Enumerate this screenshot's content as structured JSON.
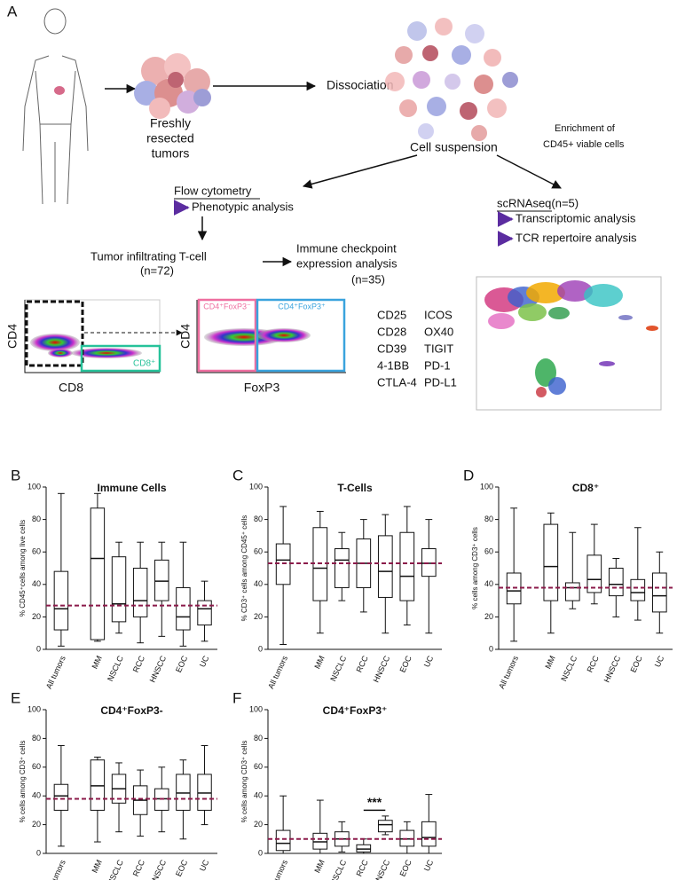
{
  "diagram": {
    "panel_label": "A",
    "tumor_label": [
      "Freshly",
      "resected",
      "tumors"
    ],
    "dissociation": "Dissociation",
    "cell_suspension": "Cell suspension",
    "enrichment": [
      "Enrichment of",
      "CD45+ viable cells"
    ],
    "flow_cytometry": "Flow cytometry",
    "phenotypic": "Phenotypic analysis",
    "scrnaseq": "scRNAseq(n=5)",
    "transcriptomic": "Transcriptomic analysis",
    "tcr": "TCR repertoire analysis",
    "til": [
      "Tumor infiltrating T-cell",
      "(n=72)"
    ],
    "checkpoint": [
      "Immune checkpoint",
      "expression analysis",
      "(n=35)"
    ],
    "plot1": {
      "y_label": "CD4",
      "x_label": "CD8",
      "gate": "CD8⁺"
    },
    "plot2": {
      "y_label": "CD4",
      "x_label": "FoxP3",
      "gate_left": "CD4⁺FoxP3⁻",
      "gate_right": "CD4⁺FoxP3⁺"
    },
    "markers": [
      [
        "CD25",
        "ICOS"
      ],
      [
        "CD28",
        "OX40"
      ],
      [
        "CD39",
        "TIGIT"
      ],
      [
        "4-1BB",
        "PD-1"
      ],
      [
        "CTLA-4",
        "PD-L1"
      ]
    ]
  },
  "chart_data": [
    {
      "type": "box",
      "panel": "B",
      "title": "Immune Cells",
      "y_label": "% CD45⁺cells among live cells",
      "categories": [
        "All tumors",
        "MM",
        "NSCLC",
        "RCC",
        "HNSCC",
        "EOC",
        "UC"
      ],
      "whisker_low": [
        2,
        5,
        10,
        4,
        8,
        2,
        5
      ],
      "q1": [
        12,
        6,
        17,
        20,
        30,
        12,
        15
      ],
      "median": [
        25,
        56,
        28,
        30,
        42,
        20,
        25
      ],
      "q3": [
        48,
        87,
        57,
        50,
        55,
        38,
        30
      ],
      "whisker_high": [
        96,
        96,
        66,
        66,
        66,
        66,
        42
      ],
      "reference_line": 27,
      "reference_color": "#8b1a4a",
      "ylim": [
        0,
        100
      ],
      "yticks": [
        0,
        20,
        40,
        60,
        80,
        100
      ]
    },
    {
      "type": "box",
      "panel": "C",
      "title": "T-Cells",
      "y_label": "% CD3⁺ cells among CD45⁺ cells",
      "categories": [
        "All tumors",
        "MM",
        "NSCLC",
        "RCC",
        "HNSCC",
        "EOC",
        "UC"
      ],
      "whisker_low": [
        3,
        10,
        30,
        23,
        10,
        15,
        10
      ],
      "q1": [
        40,
        30,
        38,
        38,
        32,
        30,
        45
      ],
      "median": [
        55,
        50,
        55,
        53,
        48,
        45,
        53
      ],
      "q3": [
        65,
        75,
        62,
        68,
        70,
        72,
        62
      ],
      "whisker_high": [
        88,
        85,
        72,
        80,
        83,
        88,
        80
      ],
      "reference_line": 53,
      "reference_color": "#8b1a4a",
      "ylim": [
        0,
        100
      ],
      "yticks": [
        0,
        20,
        40,
        60,
        80,
        100
      ]
    },
    {
      "type": "box",
      "panel": "D",
      "title": "CD8⁺",
      "y_label": "% cells among CD3⁺ cells",
      "categories": [
        "All tumors",
        "MM",
        "NSCLC",
        "RCC",
        "HNSCC",
        "EOC",
        "UC"
      ],
      "whisker_low": [
        5,
        10,
        25,
        28,
        20,
        18,
        10
      ],
      "q1": [
        28,
        30,
        30,
        35,
        33,
        30,
        23
      ],
      "median": [
        36,
        51,
        38,
        43,
        40,
        35,
        33
      ],
      "q3": [
        47,
        77,
        41,
        58,
        50,
        43,
        47
      ],
      "whisker_high": [
        87,
        84,
        72,
        77,
        56,
        75,
        60
      ],
      "reference_line": 38,
      "reference_color": "#8b1a4a",
      "ylim": [
        0,
        100
      ],
      "yticks": [
        0,
        20,
        40,
        60,
        80,
        100
      ]
    },
    {
      "type": "box",
      "panel": "E",
      "title": "CD4⁺FoxP3-",
      "y_label": "% cells among CD3⁺ cells",
      "categories": [
        "All tumors",
        "MM",
        "NSCLC",
        "RCC",
        "HNSCC",
        "EOC",
        "UC"
      ],
      "whisker_low": [
        5,
        8,
        15,
        12,
        15,
        10,
        20
      ],
      "q1": [
        30,
        30,
        35,
        27,
        30,
        30,
        30
      ],
      "median": [
        40,
        47,
        45,
        37,
        38,
        42,
        42
      ],
      "q3": [
        48,
        65,
        55,
        47,
        45,
        55,
        55
      ],
      "whisker_high": [
        75,
        67,
        63,
        58,
        60,
        65,
        75
      ],
      "reference_line": 38,
      "reference_color": "#8b1a4a",
      "ylim": [
        0,
        100
      ],
      "yticks": [
        0,
        20,
        40,
        60,
        80,
        100
      ]
    },
    {
      "type": "box",
      "panel": "F",
      "title": "CD4⁺FoxP3⁺",
      "y_label": "% cells among CD3⁺ cells",
      "categories": [
        "All tumors",
        "MM",
        "NSCLC",
        "RCC",
        "HNSCC",
        "EOC",
        "UC"
      ],
      "whisker_low": [
        0,
        0,
        1,
        0,
        13,
        0,
        0
      ],
      "q1": [
        2,
        3,
        5,
        1,
        15,
        5,
        5
      ],
      "median": [
        7,
        8,
        10,
        3,
        20,
        10,
        11
      ],
      "q3": [
        16,
        14,
        15,
        6,
        23,
        16,
        22
      ],
      "whisker_high": [
        40,
        37,
        22,
        10,
        26,
        22,
        41
      ],
      "reference_line": 10,
      "reference_color": "#8b1a4a",
      "ylim": [
        0,
        100
      ],
      "yticks": [
        0,
        20,
        40,
        60,
        80,
        100
      ],
      "annotation": {
        "text": "***",
        "y": 30
      }
    }
  ]
}
